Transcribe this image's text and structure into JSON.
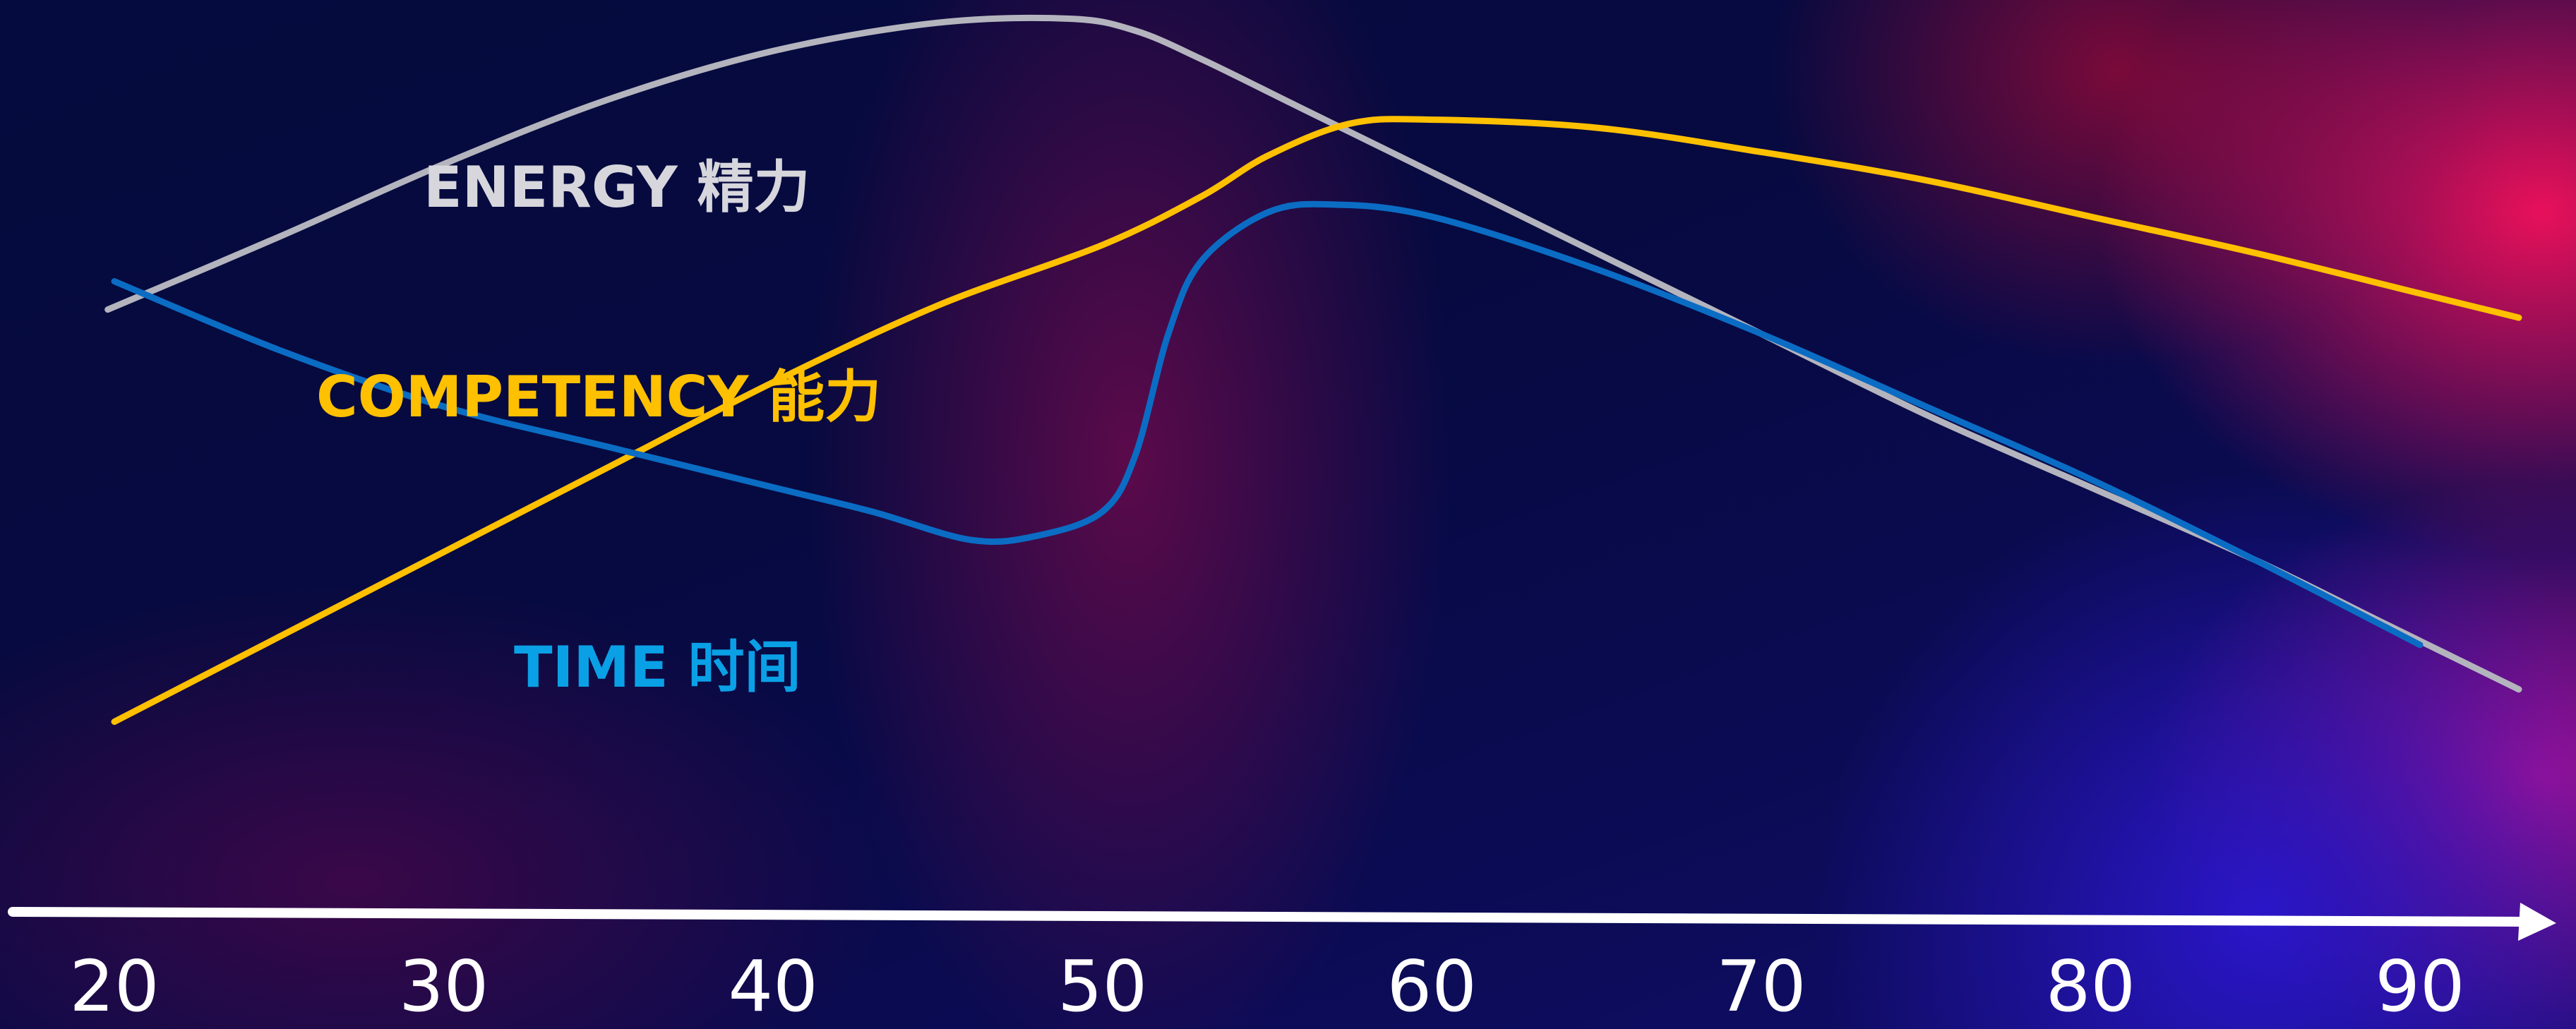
{
  "chart_data": {
    "type": "line",
    "xlim": [
      20,
      90
    ],
    "x_ticks": [
      20,
      30,
      40,
      50,
      60,
      70,
      80,
      90
    ],
    "tick_labels": [
      "20",
      "30",
      "40",
      "50",
      "60",
      "70",
      "80",
      "90"
    ],
    "ylim": [
      0,
      100
    ],
    "grid": false,
    "series": [
      {
        "name": "ENERGY 精力",
        "color": "#b4b4be",
        "x": [
          19.8,
          25,
          30,
          35,
          40,
          45,
          49,
          51,
          53,
          56,
          60,
          65,
          70,
          75,
          80,
          85,
          89,
          93
        ],
        "y": [
          63,
          72,
          81,
          89,
          95,
          98.5,
          99,
          97.5,
          94,
          88,
          80,
          70,
          60,
          50,
          41,
          32,
          24,
          16
        ]
      },
      {
        "name": "COMPETENCY 能力",
        "color": "#ffc000",
        "x": [
          20,
          25,
          30,
          35,
          40,
          45,
          50,
          53,
          55,
          57.5,
          60,
          65,
          70,
          75,
          80,
          85,
          90,
          93
        ],
        "y": [
          12,
          22.5,
          33,
          43.5,
          54,
          63.5,
          71,
          77,
          82,
          86,
          86.5,
          85.5,
          82.5,
          79,
          74.5,
          70,
          65,
          62
        ]
      },
      {
        "name": "TIME 时间",
        "color": "#0b6cc4",
        "x": [
          20,
          25,
          30,
          35,
          40,
          43,
          46,
          48,
          50,
          51,
          52,
          53,
          55,
          57,
          60,
          65,
          70,
          75,
          80,
          85,
          90
        ],
        "y": [
          66.5,
          58,
          51,
          46,
          41,
          38,
          34.5,
          35,
          38,
          45,
          60,
          69,
          75,
          76,
          74.5,
          68,
          60,
          51,
          42,
          32,
          21.5
        ]
      }
    ]
  }
}
